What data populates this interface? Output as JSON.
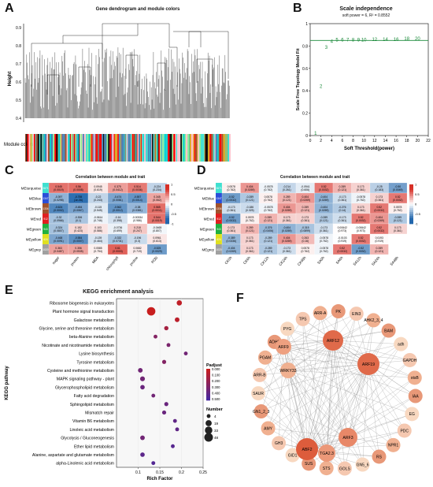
{
  "panels": {
    "A": {
      "letter": "A",
      "title": "Gene dendrogram and module colors",
      "ylabel": "Height",
      "yticks": [
        "0.9",
        "0.8",
        "0.7",
        "0.6",
        "0.5",
        "0.4"
      ],
      "colorbar_label": "Module colors"
    },
    "B": {
      "letter": "B",
      "title": "Scale independence",
      "subtitle": "soft power = 6, R² = 0.8552",
      "xlabel": "Soft Threshold(power)",
      "ylabel": "Scale Free Topology Model Fit"
    },
    "C": {
      "letter": "C",
      "title": "Correlation between module and trait"
    },
    "D": {
      "letter": "D",
      "title": "Correlation between module and trait"
    },
    "E": {
      "letter": "E",
      "title": "KEGG enrichment analysis",
      "xlabel": "Rich Factor",
      "ylabel": "KEGG pathway",
      "padj_title": "Padjust",
      "number_title": "Number"
    },
    "F": {
      "letter": "F"
    }
  },
  "chart_data": [
    {
      "type": "scatter",
      "panel": "B",
      "title": "Scale independence",
      "subtitle": "soft power = 6, R² = 0.8552",
      "xlabel": "Soft Threshold(power)",
      "ylabel": "Scale Free Topology Model Fit",
      "x": [
        1,
        2,
        3,
        4,
        5,
        6,
        7,
        8,
        9,
        10,
        12,
        14,
        16,
        18,
        20
      ],
      "y": [
        0.02,
        0.44,
        0.79,
        0.84,
        0.855,
        0.855,
        0.855,
        0.855,
        0.855,
        0.855,
        0.86,
        0.86,
        0.86,
        0.865,
        0.865
      ],
      "xlim": [
        0,
        22
      ],
      "ylim": [
        0,
        1
      ],
      "xticks": [
        "0",
        "2",
        "4",
        "6",
        "8",
        "10",
        "12",
        "14",
        "16",
        "18",
        "20",
        "22"
      ],
      "yticks": [
        "0",
        "0.2",
        "0.4",
        "0.6",
        "0.8",
        "1"
      ],
      "hline": 0.85
    },
    {
      "type": "heatmap",
      "panel": "C",
      "title": "Correlation between module and trait",
      "rows": [
        "MEturquoise",
        "MEblue",
        "MEbrown",
        "MEred",
        "MEgreen",
        "MEyellow",
        "MEgrey"
      ],
      "row_counts": [
        "3671",
        "1347",
        "1334",
        "912",
        "943",
        "624",
        "1020"
      ],
      "row_colors": [
        "#40e0d0",
        "#2b4fd8",
        "#a0522d",
        "#e02020",
        "#20b040",
        "#e0e020",
        "#a0a0a0"
      ],
      "cols": [
        "sugar",
        "protein",
        "MDA",
        "chlorophyll",
        "proline",
        "POD"
      ],
      "cells": [
        [
          "0.545\n(0.0019)",
          "0.56\n(0.0008)",
          "0.0945\n(0.619)",
          "0.375\n(0.0412)",
          "0.514\n(0.0036)",
          "-0.224\n(0.234)"
        ],
        [
          "-0.397\n(0.0298)",
          "-0.755\n(1e-06)",
          "-0.22\n(0.243)",
          "-0.474\n(0.0081)",
          "-0.557\n(0.0014)",
          "0.345\n(0.062)"
        ],
        [
          "-0.624\n(0.0002)",
          "-0.484\n(0.0067)",
          "-0.115\n(0.545)",
          "-0.562\n(0.0012)",
          "-0.38\n(0.0381)",
          "0.565\n(0.0011)"
        ],
        [
          "-0.32\n(0.0966)",
          "-0.306\n(0.1)",
          "-0.0614\n(0.746)",
          "-0.16\n(0.398)",
          "-0.00334\n(0.986)",
          "0.544\n(0.0019)"
        ],
        [
          "-0.324\n(0.0807)",
          "0.152\n(0.423)",
          "0.103\n(0.586)",
          "-0.0736\n(0.699)",
          "0.218\n(0.247)",
          "-0.0465\n(0.807)"
        ],
        [
          "-0.468\n(0.0091)",
          "-0.584\n(0.0007)",
          "-0.139\n(0.464)",
          "-0.332\n(0.0731)",
          "-0.196\n(0.3)",
          "0.0961\n(0.613)"
        ],
        [
          "0.363\n(0.0487)",
          "0.356\n(0.0535)",
          "0.0585\n(0.754)",
          "0.61\n(0.0003)",
          "0.0682\n(0.719)",
          "-0.525\n(0.0029)"
        ]
      ],
      "values": [
        [
          0.545,
          0.56,
          0.0945,
          0.375,
          0.514,
          -0.224
        ],
        [
          -0.397,
          -0.755,
          -0.22,
          -0.474,
          -0.557,
          0.345
        ],
        [
          -0.624,
          -0.484,
          -0.115,
          -0.562,
          -0.38,
          0.565
        ],
        [
          -0.32,
          -0.306,
          -0.0614,
          -0.16,
          -0.00334,
          0.544
        ],
        [
          -0.324,
          0.152,
          0.103,
          -0.0736,
          0.218,
          -0.0465
        ],
        [
          -0.468,
          -0.584,
          -0.139,
          -0.332,
          -0.196,
          0.0961
        ],
        [
          0.363,
          0.356,
          0.0585,
          0.61,
          0.0682,
          -0.525
        ]
      ],
      "legend_ticks": [
        "1",
        "0.5",
        "0",
        "-0.5",
        "-1"
      ]
    },
    {
      "type": "heatmap",
      "panel": "D",
      "title": "Correlation between module and trait",
      "rows": [
        "MEturquoise",
        "MEblue",
        "MEbrown",
        "MEred",
        "MEgreen",
        "MEyellow",
        "MEgrey"
      ],
      "row_counts": [
        "3671",
        "1347",
        "1334",
        "912",
        "943",
        "624",
        "1020"
      ],
      "row_colors": [
        "#40e0d0",
        "#2b4fd8",
        "#a0522d",
        "#e02020",
        "#20b040",
        "#e0e020",
        "#a0a0a0"
      ],
      "cols": [
        "CK0h",
        "CK6h",
        "CK12h",
        "CK24h",
        "CK48h",
        "SA0h",
        "SA6h",
        "SA12h",
        "SA24h",
        "SA48h"
      ],
      "cells": [
        [
          "0.0578\n(0.762)",
          "0.404\n(0.0269)",
          "-0.0578\n(0.762)",
          "-0.214\n(0.261)",
          "-0.0941\n(0.606)",
          "0.52\n(0.0032)",
          "0.289\n(0.121)",
          "0.173\n(0.361)",
          "-0.25\n(0.183)",
          "-0.50\n(0.0049)"
        ],
        [
          "-0.52\n(0.0032)",
          "-0.289\n(0.121)",
          "0.0578\n(0.762)",
          "0.289\n(0.121)",
          "0.404\n(0.0269)",
          "-0.404\n(0.0269)",
          "-0.173\n(0.361)",
          "-0.0578\n(0.762)",
          "0.173\n(0.361)",
          "0.52\n(0.0032)"
        ],
        [
          "-0.173\n(0.361)",
          "-0.186\n(0.325)",
          "-0.0578\n(0.762)",
          "0.404\n(0.0269)",
          "0.289\n(0.121)",
          "-0.404\n(0.0269)",
          "-0.276\n(0.14)",
          "0.173\n(0.361)",
          "0.52\n(0.0032)",
          "0.0578\n(0.762)"
        ],
        [
          "-0.52\n(0.0032)",
          "0.0578\n(0.762)",
          "0.289\n(0.121)",
          "0.173\n(0.361)",
          "0.173\n(0.361)",
          "-0.289\n(0.121)",
          "-0.173\n(0.361)",
          "0.52\n(0.0032)",
          "0.404\n(0.0269)",
          "-0.289\n(0.121)"
        ],
        [
          "0.173\n(0.361)",
          "0.289\n(0.121)",
          "-0.376\n(0.0406)",
          "-0.404\n(0.0269)",
          "-0.315\n(0.0899)",
          "-0.173\n(0.361)",
          "0.00642\n(0.973)",
          "-0.00642\n(0.973)",
          "0.52\n(0.0032)",
          "0.173\n(0.361)"
        ],
        [
          "-0.389\n(0.0336)",
          "0.173\n(0.361)",
          "-0.289\n(0.121)",
          "0.404\n(0.0269)",
          "0.263\n(0.16)",
          "-0.0578\n(0.762)",
          "-0.0103\n(0.919)",
          "0.52\n(0.0032)",
          "0.0193\n(0.919)",
          ""
        ],
        [
          "-0.404\n(0.0269)",
          "0.173\n(0.361)",
          "-0.289\n(0.121)",
          "-0.173\n(0.361)",
          "0.0578\n(0.762)",
          "-0.0578\n(0.762)",
          "0.52\n(0.0032)",
          "-0.52\n(0.0032)",
          "0.289\n(0.121)",
          ""
        ]
      ],
      "values": [
        [
          0.0578,
          0.404,
          -0.0578,
          -0.214,
          -0.0941,
          0.52,
          0.289,
          0.173,
          -0.25,
          -0.5
        ],
        [
          -0.52,
          -0.289,
          0.0578,
          0.289,
          0.404,
          -0.404,
          -0.173,
          -0.0578,
          0.173,
          0.52
        ],
        [
          -0.173,
          -0.186,
          -0.0578,
          0.404,
          0.289,
          -0.404,
          -0.276,
          0.173,
          0.52,
          0.0578
        ],
        [
          -0.52,
          0.0578,
          0.289,
          0.173,
          0.173,
          -0.289,
          -0.173,
          0.52,
          0.404,
          -0.289
        ],
        [
          0.173,
          0.289,
          -0.376,
          -0.404,
          -0.315,
          -0.173,
          0.00642,
          -0.00642,
          0.52,
          0.173
        ],
        [
          -0.389,
          0.173,
          -0.289,
          0.404,
          0.263,
          -0.0578,
          -0.0103,
          0.52,
          0.0193,
          0.0
        ],
        [
          -0.404,
          0.173,
          -0.289,
          -0.173,
          0.0578,
          -0.0578,
          0.52,
          -0.52,
          0.289,
          0.0
        ]
      ],
      "legend_ticks": [
        "1",
        "0.5",
        "0",
        "-0.5",
        "-1"
      ]
    },
    {
      "type": "scatter",
      "panel": "E",
      "title": "KEGG enrichment analysis",
      "xlabel": "Rich Factor",
      "ylabel": "KEGG pathway",
      "pathways": [
        "Ribosome biogenesis in eukaryotes",
        "Plant hormone signal transduction",
        "Galactose metabolism",
        "Glycine, serine and threonine metabolism",
        "beta-Alanine metabolism",
        "Nicotinate and nicotinamide metabolism",
        "Lysine biosynthesis",
        "Tyrosine metabolism",
        "Cysteine and methionine metabolism",
        "MAPK signaling pathway - plant",
        "Glycerophospholipid metabolism",
        "Fatty acid degradation",
        "Sphingolipid metabolism",
        "Mismatch repair",
        "Vitamin B6 metabolism",
        "Linoleic acid metabolism",
        "Glycolysis / Gluconeogenesis",
        "Ether lipid metabolism",
        "Alanine, aspartate and glutamate metabolism",
        "alpha-Linolenic acid metabolism"
      ],
      "rich_factor": [
        0.195,
        0.13,
        0.19,
        0.165,
        0.14,
        0.17,
        0.21,
        0.16,
        0.105,
        0.11,
        0.11,
        0.135,
        0.165,
        0.16,
        0.185,
        0.19,
        0.11,
        0.18,
        0.11,
        0.135
      ],
      "padjust": [
        0.02,
        0.001,
        0.03,
        0.08,
        0.16,
        0.18,
        0.2,
        0.16,
        0.2,
        0.2,
        0.22,
        0.2,
        0.22,
        0.22,
        0.24,
        0.24,
        0.2,
        0.26,
        0.25,
        0.27
      ],
      "number": [
        12,
        45,
        8,
        6,
        4,
        4,
        4,
        5,
        8,
        9,
        7,
        4,
        5,
        5,
        4,
        4,
        8,
        4,
        7,
        4
      ],
      "xlim": [
        0.05,
        0.25
      ],
      "xticks": [
        "0.1",
        "0.15",
        "0.2",
        "0.25"
      ],
      "padj_ticks": [
        "0.500",
        "0.400",
        "0.300",
        "0.200",
        "0.100",
        "0.000"
      ],
      "number_ticks": [
        "4",
        "19",
        "33",
        "48"
      ]
    }
  ],
  "network": {
    "hubs": [
      "ARF12",
      "ARF19",
      "ABF2",
      "ARF3",
      "TGA2.3",
      "WRKY33",
      "ARF9"
    ],
    "outer": [
      "EIN3",
      "AHK2_3_4",
      "BAM",
      "adh",
      "GAPDH",
      "otsB",
      "IAA",
      "EG",
      "PDC",
      "NPR1",
      "RS",
      "GN5_6",
      "GOLS",
      "STS",
      "SUS",
      "GID1",
      "GH3",
      "AMY",
      "GN1_2_3",
      "SAUR",
      "ARR-B",
      "PGAM",
      "ADHS",
      "PYG",
      "TPS",
      "ARR-A",
      "PK"
    ]
  }
}
